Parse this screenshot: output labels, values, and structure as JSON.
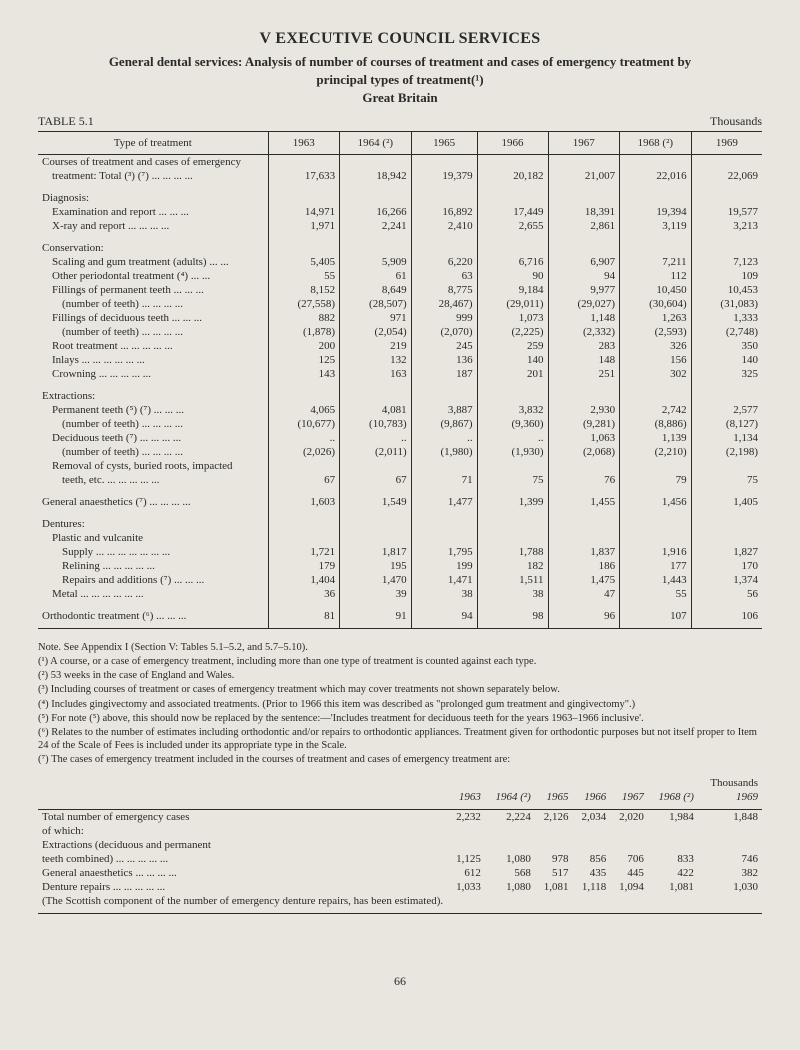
{
  "header": {
    "title": "V EXECUTIVE COUNCIL SERVICES",
    "subtitle_line1": "General dental services: Analysis of number of courses of treatment and cases of emergency treatment by",
    "subtitle_line2": "principal types of treatment(¹)",
    "subtitle_line3": "Great Britain",
    "table_label": "TABLE 5.1",
    "unit": "Thousands",
    "type_head": "Type of treatment"
  },
  "years": [
    "1963",
    "1964 (²)",
    "1965",
    "1966",
    "1967",
    "1968 (²)",
    "1969"
  ],
  "rows": [
    {
      "label": "Courses of treatment and cases of emergency",
      "vals": [
        "",
        "",
        "",
        "",
        "",
        "",
        ""
      ],
      "indent": 0
    },
    {
      "label": "treatment: Total (³) (⁷)   ...   ...   ...   ...",
      "vals": [
        "17,633",
        "18,942",
        "19,379",
        "20,182",
        "21,007",
        "22,016",
        "22,069"
      ],
      "indent": 1
    },
    {
      "spacer": true
    },
    {
      "label": "Diagnosis:",
      "vals": [
        "",
        "",
        "",
        "",
        "",
        "",
        ""
      ],
      "indent": 0
    },
    {
      "label": "Examination and report        ...   ...   ...",
      "vals": [
        "14,971",
        "16,266",
        "16,892",
        "17,449",
        "18,391",
        "19,394",
        "19,577"
      ],
      "indent": 1
    },
    {
      "label": "X-ray and report        ...   ...   ...   ...",
      "vals": [
        "1,971",
        "2,241",
        "2,410",
        "2,655",
        "2,861",
        "3,119",
        "3,213"
      ],
      "indent": 1
    },
    {
      "spacer": true
    },
    {
      "label": "Conservation:",
      "vals": [
        "",
        "",
        "",
        "",
        "",
        "",
        ""
      ],
      "indent": 0
    },
    {
      "label": "Scaling and gum treatment (adults)   ...   ...",
      "vals": [
        "5,405",
        "5,909",
        "6,220",
        "6,716",
        "6,907",
        "7,211",
        "7,123"
      ],
      "indent": 1
    },
    {
      "label": "Other periodontal treatment (⁴)   ...   ...",
      "vals": [
        "55",
        "61",
        "63",
        "90",
        "94",
        "112",
        "109"
      ],
      "indent": 1
    },
    {
      "label": "Fillings of permanent teeth   ...   ...   ...",
      "vals": [
        "8,152",
        "8,649",
        "8,775",
        "9,184",
        "9,977",
        "10,450",
        "10,453"
      ],
      "indent": 1
    },
    {
      "label": "(number of teeth)   ...   ...   ...   ...",
      "vals": [
        "(27,558)",
        "(28,507)",
        "28,467)",
        "(29,011)",
        "(29,027)",
        "(30,604)",
        "(31,083)"
      ],
      "indent": 2
    },
    {
      "label": "Fillings of deciduous teeth   ...   ...   ...",
      "vals": [
        "882",
        "971",
        "999",
        "1,073",
        "1,148",
        "1,263",
        "1,333"
      ],
      "indent": 1
    },
    {
      "label": "(number of teeth)   ...   ...   ...   ...",
      "vals": [
        "(1,878)",
        "(2,054)",
        "(2,070)",
        "(2,225)",
        "(2,332)",
        "(2,593)",
        "(2,748)"
      ],
      "indent": 2
    },
    {
      "label": "Root treatment ...   ...   ...   ...   ...",
      "vals": [
        "200",
        "219",
        "245",
        "259",
        "283",
        "326",
        "350"
      ],
      "indent": 1
    },
    {
      "label": "Inlays     ...   ...   ...   ...   ...   ...",
      "vals": [
        "125",
        "132",
        "136",
        "140",
        "148",
        "156",
        "140"
      ],
      "indent": 1
    },
    {
      "label": "Crowning        ...   ...   ...   ...   ...",
      "vals": [
        "143",
        "163",
        "187",
        "201",
        "251",
        "302",
        "325"
      ],
      "indent": 1
    },
    {
      "spacer": true
    },
    {
      "label": "Extractions:",
      "vals": [
        "",
        "",
        "",
        "",
        "",
        "",
        ""
      ],
      "indent": 0
    },
    {
      "label": "Permanent teeth (⁵) (⁷)        ...   ...   ...",
      "vals": [
        "4,065",
        "4,081",
        "3,887",
        "3,832",
        "2,930",
        "2,742",
        "2,577"
      ],
      "indent": 1
    },
    {
      "label": "(number of teeth)   ...   ...   ...   ...",
      "vals": [
        "(10,677)",
        "(10,783)",
        "(9,867)",
        "(9,360)",
        "(9,281)",
        "(8,886)",
        "(8,127)"
      ],
      "indent": 2
    },
    {
      "label": "Deciduous teeth (⁷)        ...   ...   ...   ...",
      "vals": [
        "..",
        "..",
        "..",
        "..",
        "1,063",
        "1,139",
        "1,134"
      ],
      "indent": 1
    },
    {
      "label": "(number of teeth)   ...   ...   ...   ...",
      "vals": [
        "(2,026)",
        "(2,011)",
        "(1,980)",
        "(1,930)",
        "(2,068)",
        "(2,210)",
        "(2,198)"
      ],
      "indent": 2
    },
    {
      "label": "Removal of cysts, buried roots, impacted",
      "vals": [
        "",
        "",
        "",
        "",
        "",
        "",
        ""
      ],
      "indent": 1
    },
    {
      "label": "teeth, etc.     ...   ...   ...   ...   ...",
      "vals": [
        "67",
        "67",
        "71",
        "75",
        "76",
        "79",
        "75"
      ],
      "indent": 2
    },
    {
      "spacer": true
    },
    {
      "label": "General anaesthetics (⁷)  ...   ...   ...   ...",
      "vals": [
        "1,603",
        "1,549",
        "1,477",
        "1,399",
        "1,455",
        "1,456",
        "1,405"
      ],
      "indent": 0
    },
    {
      "spacer": true
    },
    {
      "label": "Dentures:",
      "vals": [
        "",
        "",
        "",
        "",
        "",
        "",
        ""
      ],
      "indent": 0
    },
    {
      "label": "Plastic and vulcanite",
      "vals": [
        "",
        "",
        "",
        "",
        "",
        "",
        ""
      ],
      "indent": 1
    },
    {
      "label": "Supply ...   ...   ...   ...   ...   ...   ...",
      "vals": [
        "1,721",
        "1,817",
        "1,795",
        "1,788",
        "1,837",
        "1,916",
        "1,827"
      ],
      "indent": 2
    },
    {
      "label": "Relining       ...   ...   ...   ...   ...",
      "vals": [
        "179",
        "195",
        "199",
        "182",
        "186",
        "177",
        "170"
      ],
      "indent": 2
    },
    {
      "label": "Repairs and additions (⁷)   ...   ...   ...",
      "vals": [
        "1,404",
        "1,470",
        "1,471",
        "1,511",
        "1,475",
        "1,443",
        "1,374"
      ],
      "indent": 2
    },
    {
      "label": "Metal     ...   ...   ...   ...   ...   ...",
      "vals": [
        "36",
        "39",
        "38",
        "38",
        "47",
        "55",
        "56"
      ],
      "indent": 1
    },
    {
      "spacer": true
    },
    {
      "label": "Orthodontic treatment (⁶)       ...   ...   ...",
      "vals": [
        "81",
        "91",
        "94",
        "98",
        "96",
        "107",
        "106"
      ],
      "indent": 0
    }
  ],
  "notes": {
    "intro": "Note. See Appendix I (Section V: Tables 5.1–5.2, and 5.7–5.10).",
    "n1": "(¹) A course, or a case of emergency treatment, including more than one type of treatment is counted against each type.",
    "n2": "(²) 53 weeks in the case of England and Wales.",
    "n3": "(³) Including courses of treatment or cases of emergency treatment which may cover treatments not shown separately below.",
    "n4": "(⁴) Includes gingivectomy and associated treatments. (Prior to 1966 this item was described as \"prolonged gum treatment and gingivectomy\".)",
    "n5": "(⁵) For note (⁵) above, this should now be replaced by the sentence:—'Includes treatment for deciduous teeth for the years 1963–1966 inclusive'.",
    "n6": "(⁶) Relates to the number of estimates including orthodontic and/or repairs to orthodontic appliances. Treatment given for orthodontic purposes but not itself proper to Item 24 of the Scale of Fees is included under its appropriate type in the Scale.",
    "n7": "(⁷) The cases of emergency treatment included in the courses of treatment and cases of emergency treatment are:",
    "thousands": "Thousands"
  },
  "sub_years": [
    "1963",
    "1964 (²)",
    "1965",
    "1966",
    "1967",
    "1968 (²)",
    "1969"
  ],
  "sub_rows": [
    {
      "label": "Total number of emergency cases",
      "vals": [
        "2,232",
        "2,224",
        "2,126",
        "2,034",
        "2,020",
        "1,984",
        "1,848"
      ]
    },
    {
      "label": "  of which:",
      "vals": [
        "",
        "",
        "",
        "",
        "",
        "",
        ""
      ]
    },
    {
      "label": "Extractions (deciduous and permanent",
      "vals": [
        "",
        "",
        "",
        "",
        "",
        "",
        ""
      ]
    },
    {
      "label": "  teeth combined)  ...   ...   ...   ...   ...",
      "vals": [
        "1,125",
        "1,080",
        "978",
        "856",
        "706",
        "833",
        "746"
      ]
    },
    {
      "label": "General anaesthetics        ...   ...   ...   ...",
      "vals": [
        "612",
        "568",
        "517",
        "435",
        "445",
        "422",
        "382"
      ]
    },
    {
      "label": "Denture repairs     ...   ...   ...   ...   ...",
      "vals": [
        "1,033",
        "1,080",
        "1,081",
        "1,118",
        "1,094",
        "1,081",
        "1,030"
      ]
    },
    {
      "label": "(The Scottish component of the number of emergency denture repairs, has been estimated).",
      "vals": [
        "",
        "",
        "",
        "",
        "",
        "",
        ""
      ]
    }
  ],
  "page_number": "66"
}
